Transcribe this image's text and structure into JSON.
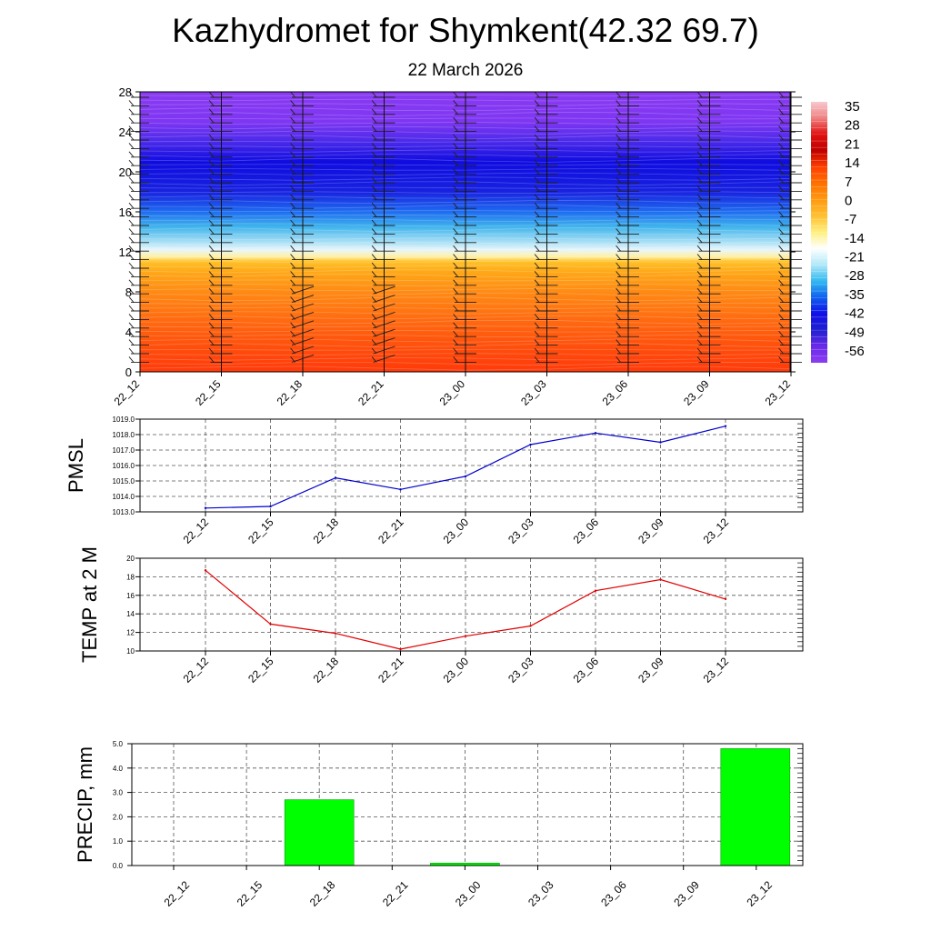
{
  "header": {
    "title": "Kazhydromet for Shymkent(42.32 69.7)",
    "date": "22 March 2026"
  },
  "colors": {
    "pmsl_line": "#0000cc",
    "temp_line": "#e00000",
    "precip_bar": "#00ff00",
    "grid": "#555555"
  },
  "chart_data": [
    {
      "type": "heatmap",
      "name": "cross-section",
      "x_labels": [
        "22_12",
        "22_15",
        "22_18",
        "22_21",
        "23_00",
        "23_03",
        "23_06",
        "23_09",
        "23_12"
      ],
      "y_ticks": [
        0,
        4,
        8,
        12,
        16,
        20,
        24,
        28
      ],
      "ylim": [
        0,
        28
      ],
      "colorbar_labels": [
        "35",
        "28",
        "21",
        "14",
        "7",
        "0",
        "-7",
        "-14",
        "-21",
        "-28",
        "-35",
        "-42",
        "-49",
        "-56"
      ],
      "colorbar_colors": [
        "#f6c9cf",
        "#f08080",
        "#e01010",
        "#c00000",
        "#ff4000",
        "#ff7000",
        "#ff9a10",
        "#ffc030",
        "#fff080",
        "#ffffff",
        "#b0e8f8",
        "#30b8f0",
        "#1060f0",
        "#1010e8",
        "#2020d0",
        "#6a2ae8",
        "#8c3cf0"
      ],
      "profile": [
        {
          "h": 0,
          "color": "#ff3a0a"
        },
        {
          "h": 2,
          "color": "#ff4a0c"
        },
        {
          "h": 5,
          "color": "#ff6810"
        },
        {
          "h": 8,
          "color": "#ff8a14"
        },
        {
          "h": 10,
          "color": "#ffa818"
        },
        {
          "h": 11,
          "color": "#ffc028"
        },
        {
          "h": 11.5,
          "color": "#fff0a0"
        },
        {
          "h": 12.2,
          "color": "#e8f6fb"
        },
        {
          "h": 13,
          "color": "#a8dff5"
        },
        {
          "h": 14.5,
          "color": "#40b4ec"
        },
        {
          "h": 16,
          "color": "#1e6cf0"
        },
        {
          "h": 18,
          "color": "#1822e0"
        },
        {
          "h": 21,
          "color": "#0f0ce0"
        },
        {
          "h": 23,
          "color": "#4a2aea"
        },
        {
          "h": 25,
          "color": "#7e36f2"
        },
        {
          "h": 28,
          "color": "#8a3af2"
        }
      ]
    },
    {
      "type": "line",
      "name": "pmsl",
      "ylabel": "PMSL",
      "ylim": [
        1013.0,
        1019.0
      ],
      "y_ticks": [
        "1013.0",
        "1014.0",
        "1015.0",
        "1016.0",
        "1017.0",
        "1018.0",
        "1019.0"
      ],
      "x": [
        "22_12",
        "22_15",
        "22_18",
        "22_21",
        "23_00",
        "23_03",
        "23_06",
        "23_09",
        "23_12"
      ],
      "values": [
        1013.25,
        1013.35,
        1015.2,
        1014.45,
        1015.3,
        1017.35,
        1018.1,
        1017.5,
        1018.55
      ]
    },
    {
      "type": "line",
      "name": "temp2m",
      "ylabel": "TEMP at 2 M",
      "ylim": [
        10,
        20
      ],
      "y_ticks": [
        "10",
        "12",
        "14",
        "16",
        "18",
        "20"
      ],
      "x": [
        "22_12",
        "22_15",
        "22_18",
        "22_21",
        "23_00",
        "23_03",
        "23_06",
        "23_09",
        "23_12"
      ],
      "values": [
        18.7,
        12.9,
        11.9,
        10.2,
        11.6,
        12.7,
        16.5,
        17.7,
        15.6
      ]
    },
    {
      "type": "bar",
      "name": "precip",
      "ylabel": "PRECIP, mm",
      "ylim": [
        0,
        5.0
      ],
      "y_ticks": [
        "0.0",
        "1.0",
        "2.0",
        "3.0",
        "4.0",
        "5.0"
      ],
      "categories": [
        "22_12",
        "22_15",
        "22_18",
        "22_21",
        "23_00",
        "23_03",
        "23_06",
        "23_09",
        "23_12"
      ],
      "values": [
        0,
        0,
        2.7,
        0,
        0.1,
        0,
        0,
        0,
        4.8
      ]
    }
  ]
}
